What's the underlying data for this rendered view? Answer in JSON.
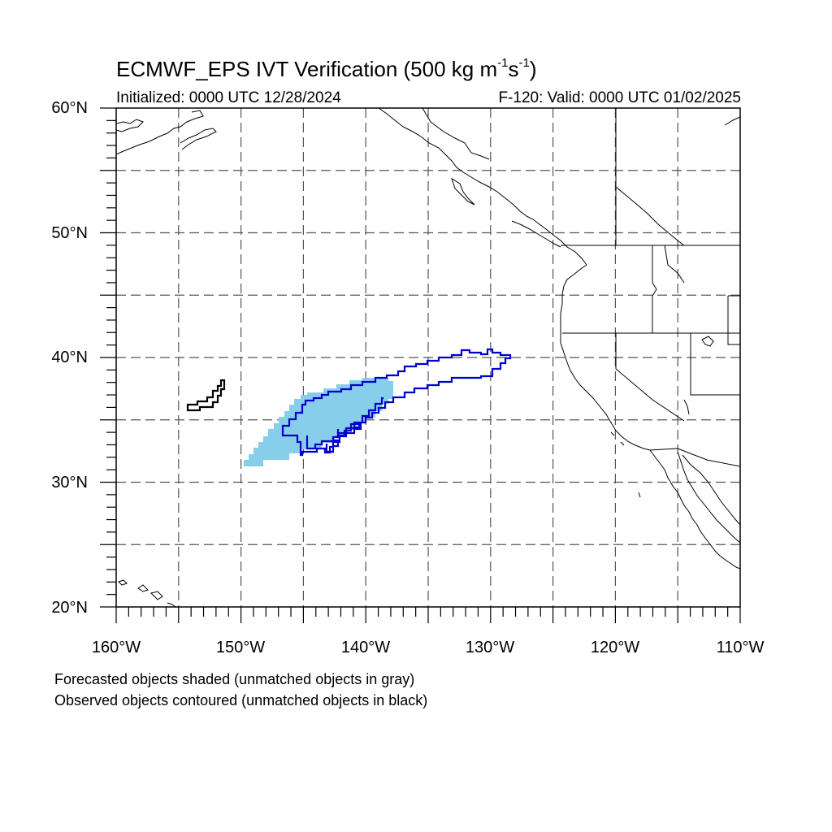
{
  "title": {
    "main_prefix": "ECMWF_EPS IVT Verification (500 kg m",
    "exp1": "-1",
    "middle": "s",
    "exp2": "-1",
    "suffix": ")"
  },
  "subtitle": {
    "initialized": "Initialized: 0000 UTC 12/28/2024",
    "valid": "F-120: Valid: 0000 UTC 01/02/2025"
  },
  "axes": {
    "lat_labels": [
      "60°N",
      "50°N",
      "40°N",
      "30°N",
      "20°N"
    ],
    "lon_labels": [
      "160°W",
      "150°W",
      "140°W",
      "130°W",
      "120°W",
      "110°W"
    ],
    "lat_range": [
      20,
      60
    ],
    "lon_range": [
      -160,
      -110
    ],
    "grid": "dashed, every 5 degrees"
  },
  "legend": {
    "line1": "Forecasted objects shaded (unmatched objects in gray)",
    "line2": "Observed objects contoured (unmatched objects in black)"
  },
  "colors": {
    "forecast_fill": "#87ceeb",
    "observed_matched": "#0000cc",
    "observed_unmatched": "#000000",
    "coastline": "#000000",
    "grid": "#555555"
  }
}
